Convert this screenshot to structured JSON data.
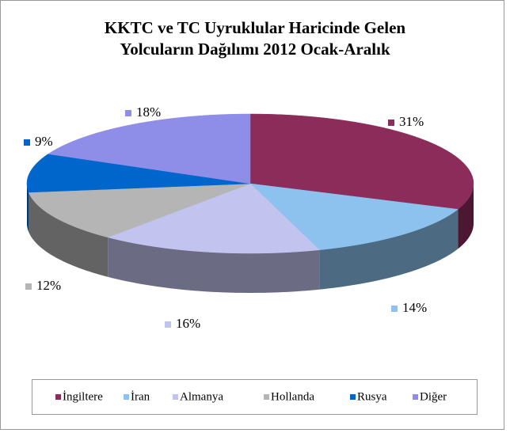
{
  "chart_data": {
    "type": "pie",
    "title": "KKTC ve TC Uyruklular Haricinde Gelen Yolcuların Dağılımı 2012 Ocak-Aralık",
    "categories": [
      "İngiltere",
      "İran",
      "Almanya",
      "Hollanda",
      "Rusya",
      "Diğer"
    ],
    "values": [
      31,
      14,
      16,
      12,
      9,
      18
    ],
    "value_labels": [
      "31%",
      "14%",
      "16%",
      "12%",
      "9%",
      "18%"
    ],
    "colors": [
      "#8B2C5A",
      "#8DC1EE",
      "#C3C3F0",
      "#B5B5B5",
      "#0066CC",
      "#8E8EE8"
    ],
    "legend": "bottom"
  }
}
